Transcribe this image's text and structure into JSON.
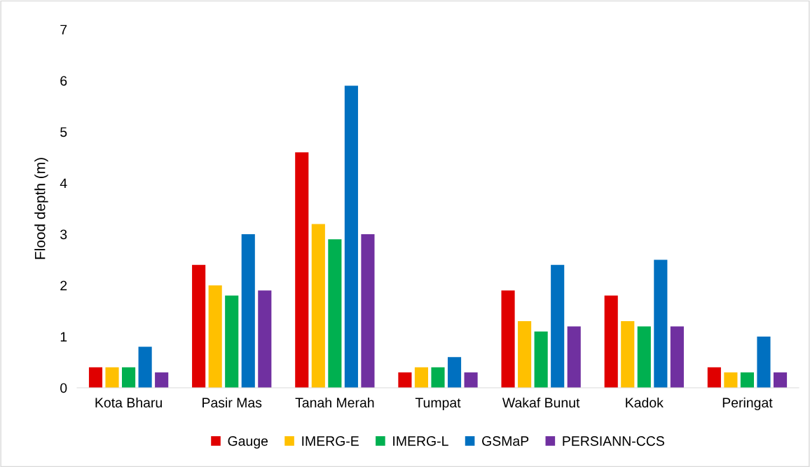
{
  "chart_data": {
    "type": "bar",
    "ylabel": "Flood depth (m)",
    "categories": [
      "Kota Bharu",
      "Pasir Mas",
      "Tanah Merah",
      "Tumpat",
      "Wakaf Bunut",
      "Kadok",
      "Peringat"
    ],
    "series": [
      {
        "name": "Gauge",
        "color": "#e00000",
        "values": [
          0.4,
          2.4,
          4.6,
          0.3,
          1.9,
          1.8,
          0.4
        ]
      },
      {
        "name": "IMERG-E",
        "color": "#ffc000",
        "values": [
          0.4,
          2.0,
          3.2,
          0.4,
          1.3,
          1.3,
          0.3
        ]
      },
      {
        "name": "IMERG-L",
        "color": "#00b050",
        "values": [
          0.4,
          1.8,
          2.9,
          0.4,
          1.1,
          1.2,
          0.3
        ]
      },
      {
        "name": "GSMaP",
        "color": "#0070c0",
        "values": [
          0.8,
          3.0,
          5.9,
          0.6,
          2.4,
          2.5,
          1.0
        ]
      },
      {
        "name": "PERSIANN-CCS",
        "color": "#7030a0",
        "values": [
          0.3,
          1.9,
          3.0,
          0.3,
          1.2,
          1.2,
          0.3
        ]
      }
    ],
    "ylim": [
      0,
      7
    ],
    "yticks": [
      0,
      1,
      2,
      3,
      4,
      5,
      6,
      7
    ],
    "grid": false,
    "legend": "bottom"
  }
}
